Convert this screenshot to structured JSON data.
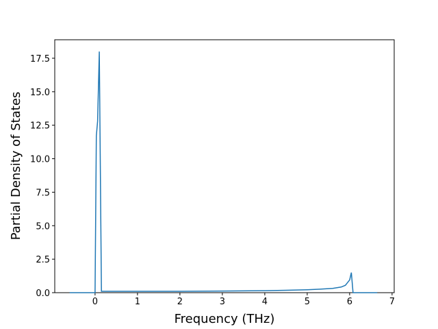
{
  "chart_data": {
    "type": "line",
    "xlabel": "Frequency (THz)",
    "ylabel": "Partial Density of States",
    "x": [
      -0.6,
      0.0,
      0.03,
      0.06,
      0.1,
      0.15,
      1,
      2,
      3,
      4,
      4.5,
      5,
      5.3,
      5.6,
      5.8,
      5.9,
      5.95,
      6.0,
      6.04,
      6.08,
      6.65
    ],
    "series": [
      {
        "color": "#1f77b4",
        "values": [
          0,
          0,
          11.7,
          12.8,
          18.0,
          0.1,
          0.1,
          0.1,
          0.12,
          0.15,
          0.18,
          0.22,
          0.26,
          0.32,
          0.42,
          0.55,
          0.75,
          0.95,
          1.5,
          0,
          0
        ]
      }
    ],
    "xlim": [
      -0.95,
      7.05
    ],
    "xticks": [
      0,
      1,
      2,
      3,
      4,
      5,
      6,
      7
    ],
    "ylim": [
      0,
      18.88
    ],
    "yticks": [
      {
        "value": 0,
        "label": "0.0"
      },
      {
        "value": 2.5,
        "label": "2.5"
      },
      {
        "value": 5,
        "label": "5.0"
      },
      {
        "value": 7.5,
        "label": "7.5"
      },
      {
        "value": 10,
        "label": "10.0"
      },
      {
        "value": 12.5,
        "label": "12.5"
      },
      {
        "value": 15,
        "label": "15.0"
      },
      {
        "value": 17.5,
        "label": "17.5"
      }
    ]
  }
}
